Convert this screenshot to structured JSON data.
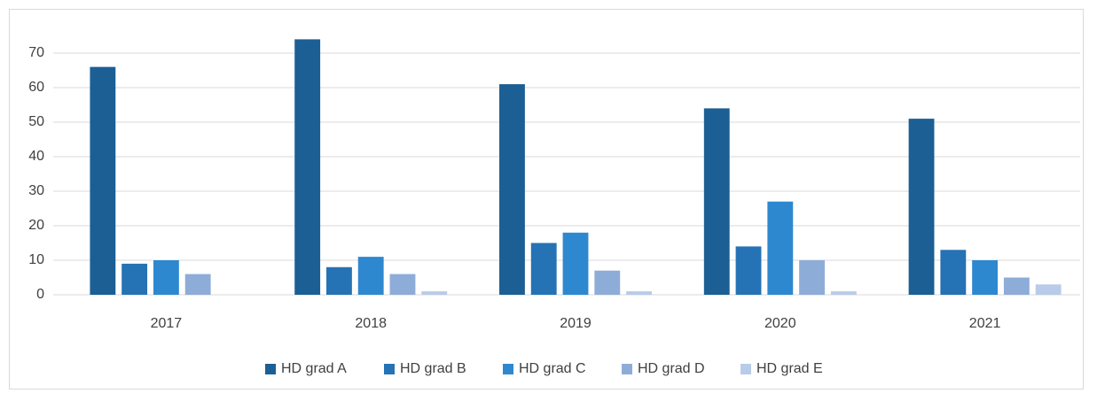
{
  "chart_data": {
    "type": "bar",
    "categories": [
      "2017",
      "2018",
      "2019",
      "2020",
      "2021"
    ],
    "series": [
      {
        "name": "HD grad A",
        "color": "#1b5f94",
        "values": [
          66,
          74,
          61,
          54,
          51
        ]
      },
      {
        "name": "HD grad B",
        "color": "#2572b4",
        "values": [
          9,
          8,
          15,
          14,
          13
        ]
      },
      {
        "name": "HD grad C",
        "color": "#2e88cf",
        "values": [
          10,
          11,
          18,
          27,
          10
        ]
      },
      {
        "name": "HD grad D",
        "color": "#8eacd8",
        "values": [
          6,
          6,
          7,
          10,
          5
        ]
      },
      {
        "name": "HD grad E",
        "color": "#b8cbe8",
        "values": [
          0,
          1,
          1,
          1,
          3
        ]
      }
    ],
    "ylim": [
      0,
      75
    ],
    "yticks": [
      0,
      10,
      20,
      30,
      40,
      50,
      60,
      70
    ],
    "grid": true,
    "legend": "bottom"
  }
}
